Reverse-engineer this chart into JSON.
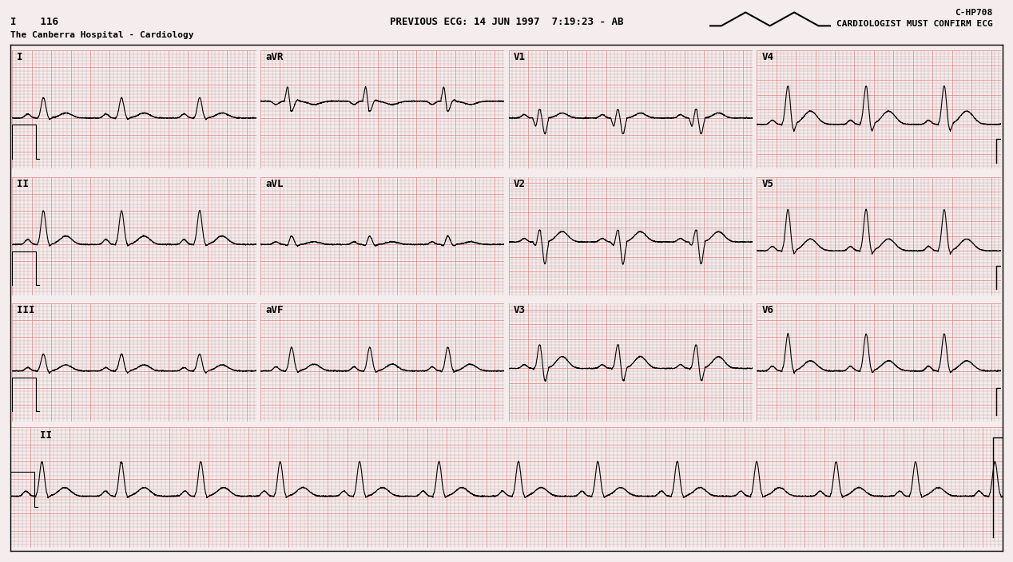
{
  "bg_color": "#e8e8e8",
  "grid_minor_color": "#c8a0a0",
  "grid_major_color": "#e08080",
  "ecg_color": "#000000",
  "paper_color": "#f5eded",
  "title_line1": "PREVIOUS ECG: 14 JUN 1997  7:19:23 - AB",
  "title_line2": "The Canberra Hospital - Cardiology",
  "top_right1": "C-HP708",
  "top_right2": "CARDIOLOGIST MUST CONFIRM ECG",
  "top_left": "I    116",
  "lead_labels": [
    "I",
    "aVR",
    "V1",
    "V4",
    "II",
    "aVL",
    "V2",
    "V5",
    "III",
    "aVF",
    "V3",
    "V6",
    "II"
  ],
  "figsize": [
    12.68,
    7.04
  ],
  "dpi": 100
}
